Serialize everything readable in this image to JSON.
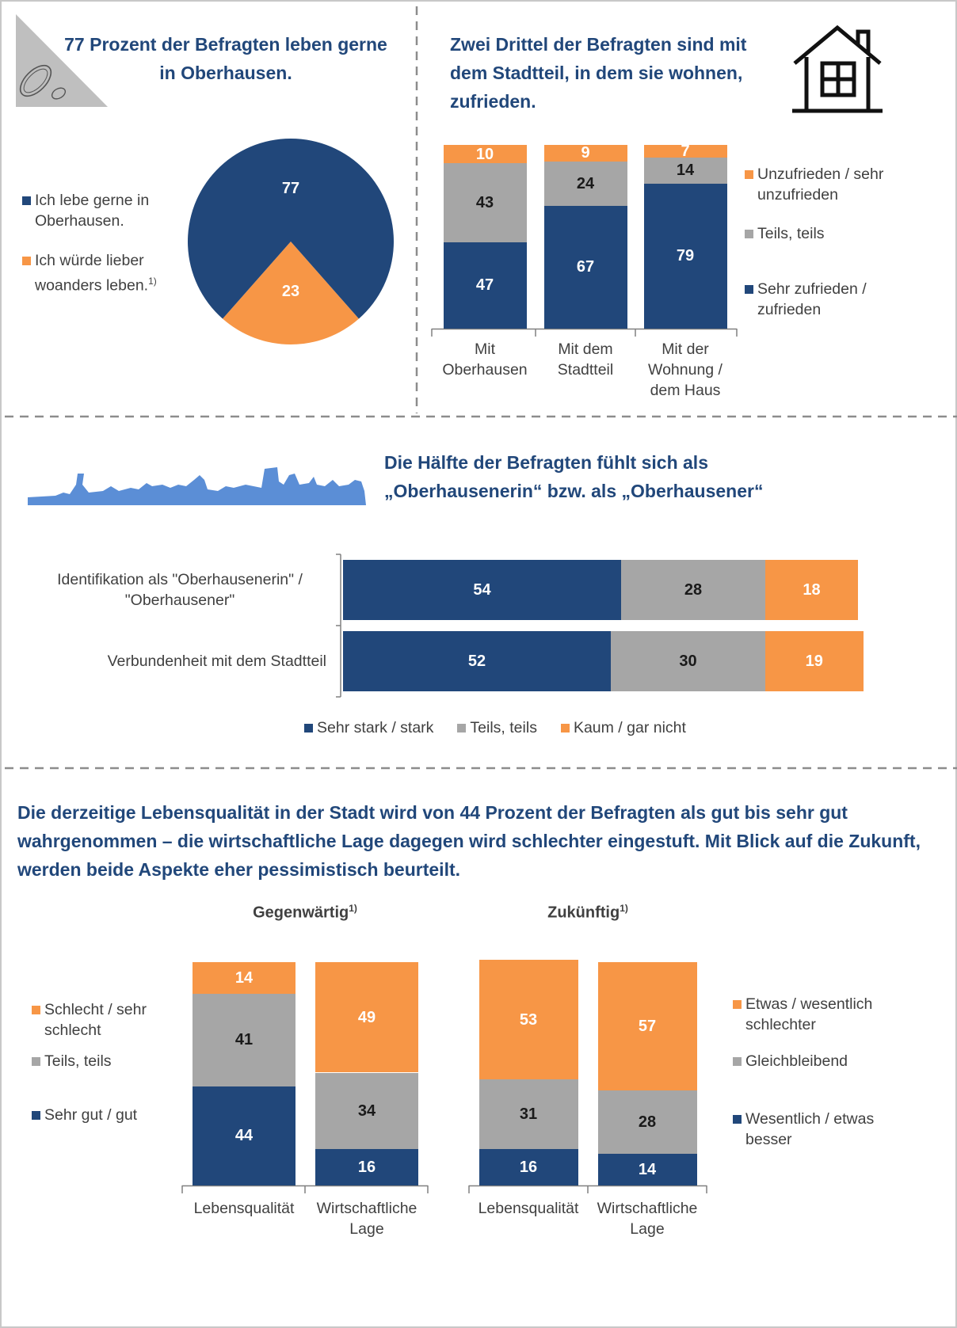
{
  "headline": "Die derzeitige Lebensqualität in der Stadt wird von 44 Prozent der Befragten als gut bis sehr gut wahrgenommen – die wirtschaftliche Lage dagegen wird schlechter eingestuft. Mit Blick auf die Zukunft, werden beide Aspekte eher pessimistisch beurteilt.",
  "chart_data": [
    {
      "type": "pie",
      "title": "77 Prozent der Befragten leben gerne in Oberhausen.",
      "categories": [
        "Ich lebe gerne in Oberhausen.",
        "Ich würde lieber woanders leben."
      ],
      "footnote": "1)",
      "values": [
        77,
        23
      ],
      "colors": [
        "#21477a",
        "#f79646"
      ]
    },
    {
      "type": "stacked_bar",
      "title": "Zwei Drittel der Befragten sind mit dem Stadtteil, in dem sie wohnen, zufrieden.",
      "categories": [
        "Mit Oberhausen",
        "Mit dem Stadtteil",
        "Mit der Wohnung / dem Haus"
      ],
      "ylim": [
        0,
        100
      ],
      "series": [
        {
          "name": "Sehr zufrieden / zufrieden",
          "color": "#21477a",
          "values": [
            47,
            67,
            79
          ]
        },
        {
          "name": "Teils, teils",
          "color": "#a6a6a6",
          "values": [
            43,
            24,
            14
          ]
        },
        {
          "name": "Unzufrieden / sehr unzufrieden",
          "color": "#f79646",
          "values": [
            10,
            9,
            7
          ]
        }
      ]
    },
    {
      "type": "stacked_barh",
      "title": "Die Hälfte der Befragten fühlt sich als „Oberhausenerin“ bzw. als „Oberhausener“",
      "categories": [
        "Identifikation als \"Oberhausenerin\" / \"Oberhausener\"",
        "Verbundenheit mit dem Stadtteil"
      ],
      "xlim": [
        0,
        100
      ],
      "series": [
        {
          "name": "Sehr stark / stark",
          "color": "#21477a",
          "values": [
            54,
            52
          ]
        },
        {
          "name": "Teils, teils",
          "color": "#a6a6a6",
          "values": [
            28,
            30
          ]
        },
        {
          "name": "Kaum / gar nicht",
          "color": "#f79646",
          "values": [
            18,
            19
          ]
        }
      ]
    },
    {
      "type": "stacked_bar",
      "title": "Gegenwärtig",
      "title_note": "1)",
      "categories": [
        "Lebensqualität",
        "Wirtschaftliche Lage"
      ],
      "ylim": [
        0,
        100
      ],
      "series": [
        {
          "name": "Sehr gut / gut",
          "color": "#21477a",
          "values": [
            44,
            16
          ]
        },
        {
          "name": "Teils, teils",
          "color": "#a6a6a6",
          "values": [
            41,
            34
          ]
        },
        {
          "name": "Schlecht / sehr schlecht",
          "color": "#f79646",
          "values": [
            14,
            49
          ]
        }
      ]
    },
    {
      "type": "stacked_bar",
      "title": "Zukünftig",
      "title_note": "1)",
      "categories": [
        "Lebensqualität",
        "Wirtschaftliche Lage"
      ],
      "ylim": [
        0,
        100
      ],
      "series": [
        {
          "name": "Wesentlich / etwas besser",
          "color": "#21477a",
          "values": [
            16,
            14
          ]
        },
        {
          "name": "Gleichbleibend",
          "color": "#a6a6a6",
          "values": [
            31,
            28
          ]
        },
        {
          "name": "Etwas / wesentlich schlechter",
          "color": "#f79646",
          "values": [
            53,
            57
          ]
        }
      ]
    }
  ]
}
